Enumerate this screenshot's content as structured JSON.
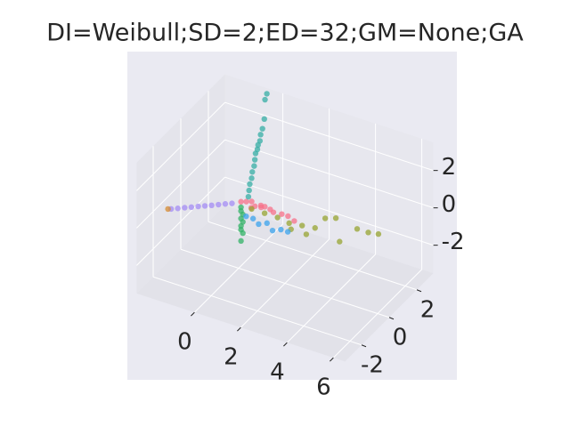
{
  "chart_data": {
    "type": "scatter3d",
    "title": "DI=Weibull;SD=2;ED=32;GM=None;GA",
    "xlim": [
      -2.5,
      6.5
    ],
    "ylim": [
      -3.2,
      3.2
    ],
    "zlim": [
      -3.5,
      3.5
    ],
    "xticks": [
      0,
      2,
      4,
      6
    ],
    "yticks": [
      -2,
      0,
      2
    ],
    "zticks": [
      -2,
      0,
      2
    ],
    "grid": true,
    "series": [
      {
        "color": "#f77189",
        "x": [
          0.1,
          0.3,
          0.5,
          0.7,
          0.9,
          1.1,
          1.3,
          1.5,
          1.8,
          2.1,
          2.4,
          0.6,
          1.0
        ],
        "y": [
          0.0,
          0.05,
          0.1,
          0.0,
          0.1,
          0.05,
          0.1,
          0.0,
          0.1,
          0.05,
          0.0,
          -0.1,
          -0.05
        ],
        "z": [
          0.1,
          0.15,
          0.2,
          0.1,
          0.15,
          0.2,
          0.1,
          0.1,
          0.05,
          0.1,
          0.0,
          0.05,
          0.2
        ]
      },
      {
        "color": "#36ada4",
        "x": [
          0.3,
          0.3,
          0.3,
          0.35,
          0.35,
          0.4,
          0.4,
          0.4,
          0.45,
          0.45,
          0.5,
          0.5,
          0.55,
          0.6,
          0.6,
          0.65
        ],
        "y": [
          0.2,
          0.25,
          0.3,
          0.35,
          0.4,
          0.45,
          0.5,
          0.55,
          0.6,
          0.65,
          0.7,
          0.75,
          0.8,
          0.85,
          0.9,
          0.95
        ],
        "z": [
          0.3,
          0.6,
          0.9,
          1.2,
          1.5,
          1.8,
          2.1,
          2.4,
          2.6,
          2.8,
          3.0,
          3.3,
          3.6,
          4.1,
          5.1,
          5.4
        ]
      },
      {
        "color": "#32b166",
        "x": [
          0.1,
          0.1,
          0.15,
          0.1,
          0.15,
          0.1,
          0.1,
          0.15,
          0.1
        ],
        "y": [
          0.0,
          0.0,
          0.05,
          0.0,
          0.05,
          0.0,
          0.0,
          0.05,
          0.0
        ],
        "z": [
          -0.2,
          -0.4,
          -0.6,
          -0.8,
          -1.0,
          -1.2,
          -1.4,
          -1.6,
          -2.0
        ]
      },
      {
        "color": "#a48cf4",
        "x": [
          -0.2,
          -0.4,
          -0.6,
          -0.8,
          -1.0,
          -1.2,
          -1.4,
          -1.6,
          -1.8,
          -2.0
        ],
        "y": [
          -0.15,
          -0.3,
          -0.46,
          -0.62,
          -0.77,
          -0.92,
          -1.08,
          -1.23,
          -1.39,
          -1.54
        ],
        "z": [
          0.0,
          0.0,
          0.0,
          0.0,
          0.0,
          0.0,
          0.0,
          0.0,
          0.0,
          0.0
        ]
      },
      {
        "color": "#97a431",
        "x": [
          0.5,
          1.0,
          1.5,
          2.0,
          2.5,
          3.0,
          3.2,
          3.6,
          4.0,
          4.4,
          5.0,
          5.2,
          2.2,
          2.8
        ],
        "y": [
          0.1,
          0.2,
          0.3,
          0.3,
          0.4,
          0.5,
          0.9,
          1.0,
          0.6,
          1.2,
          1.0,
          1.4,
          0.1,
          0.2
        ],
        "z": [
          -0.2,
          -0.3,
          -0.4,
          -0.5,
          -0.5,
          -0.5,
          -0.2,
          -0.1,
          -0.9,
          -0.5,
          -0.3,
          -0.6,
          -0.6,
          -0.7
        ]
      },
      {
        "color": "#3ba3ec",
        "x": [
          0.5,
          0.8,
          1.1,
          1.4,
          1.7,
          2.0,
          2.3
        ],
        "y": [
          -0.3,
          -0.3,
          -0.4,
          -0.3,
          -0.4,
          -0.3,
          -0.3
        ],
        "z": [
          -0.3,
          -0.3,
          -0.4,
          -0.3,
          -0.5,
          -0.4,
          -0.4
        ]
      },
      {
        "color": "#d58c32",
        "x": [
          -2.1
        ],
        "y": [
          -1.6
        ],
        "z": [
          0.0
        ]
      }
    ]
  }
}
